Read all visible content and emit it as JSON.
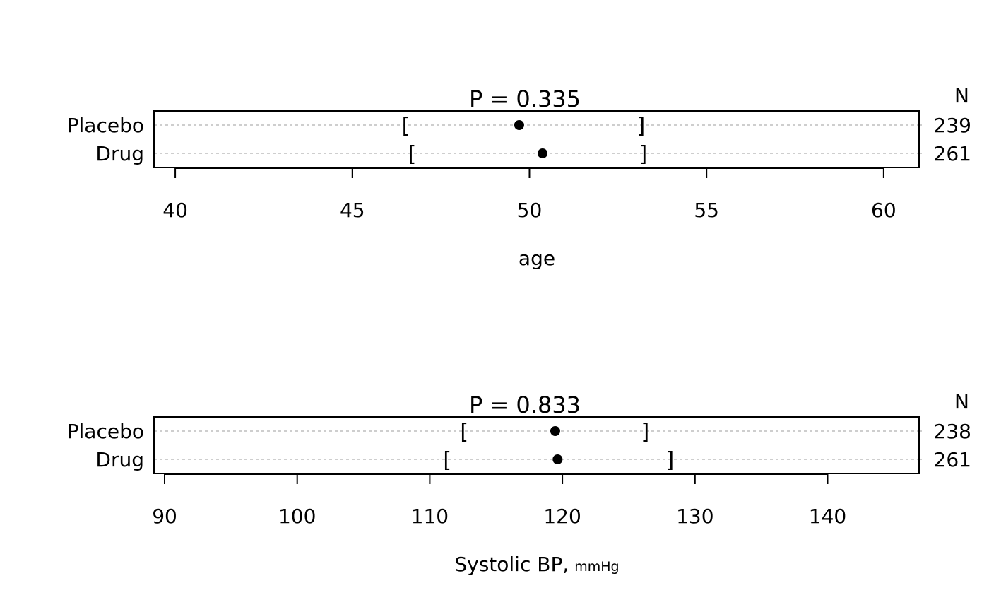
{
  "chart_data": [
    {
      "type": "dot",
      "title": "P = 0.335",
      "xlabel": "age",
      "xlabel_unit": "",
      "n_header": "N",
      "xlim": [
        39.4,
        61.0
      ],
      "xticks": [
        40,
        45,
        50,
        55,
        60
      ],
      "grid": "dotted horizontal per row",
      "categories": [
        "Placebo",
        "Drug"
      ],
      "n": [
        239,
        261
      ],
      "means": [
        49.71,
        50.37
      ],
      "lower": [
        46.51,
        46.69
      ],
      "upper": [
        53.15,
        53.21
      ]
    },
    {
      "type": "dot",
      "title": "P = 0.833",
      "xlabel": "Systolic BP,",
      "xlabel_unit": "mmHg",
      "n_header": "N",
      "xlim": [
        89.2,
        146.9
      ],
      "xticks": [
        90,
        100,
        110,
        120,
        130,
        140
      ],
      "grid": "dotted horizontal per row",
      "categories": [
        "Placebo",
        "Drug"
      ],
      "n": [
        238,
        261
      ],
      "means": [
        119.46,
        119.64
      ],
      "lower": [
        112.6,
        111.32
      ],
      "upper": [
        126.25,
        128.11
      ]
    }
  ],
  "colors": {
    "points": "#000000",
    "grid": "#bebebe"
  }
}
